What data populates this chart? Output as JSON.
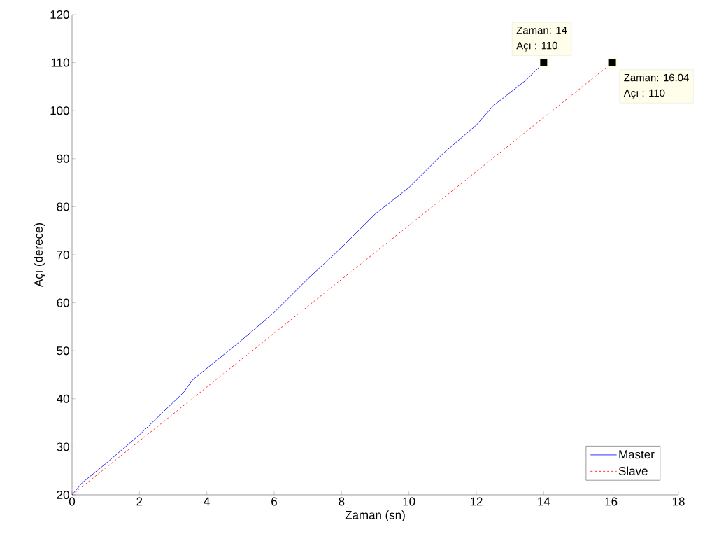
{
  "chart_data": {
    "type": "line",
    "xlabel": "Zaman (sn)",
    "ylabel": "Açı (derece)",
    "xlim": [
      0,
      18
    ],
    "ylim": [
      20,
      120
    ],
    "xticks": [
      0,
      2,
      4,
      6,
      8,
      10,
      12,
      14,
      16,
      18
    ],
    "yticks": [
      20,
      30,
      40,
      50,
      60,
      70,
      80,
      90,
      100,
      110,
      120
    ],
    "grid": false,
    "legend": "bottom right",
    "series": [
      {
        "name": "Master",
        "color": "#0000ff",
        "line_style": "solid",
        "x": [
          0,
          0.3,
          1,
          2,
          3.32,
          3.57,
          5,
          6,
          7,
          8,
          9,
          10,
          11,
          12,
          12.5,
          13.5,
          14
        ],
        "values": [
          20,
          22.5,
          26.5,
          32.5,
          41.4,
          43.9,
          52,
          58,
          65,
          71.5,
          78.5,
          84,
          91,
          97,
          101,
          106.5,
          110
        ]
      },
      {
        "name": "Slave",
        "color": "#ff0000",
        "line_style": "dashed",
        "x": [
          0,
          16.04
        ],
        "values": [
          20,
          110
        ]
      },
      {
        "type": "scatter",
        "color": "#000000",
        "marker": "square",
        "x": [
          14,
          16.04
        ],
        "values": [
          110,
          110
        ]
      }
    ],
    "annotations": [
      "Zaman: 14",
      "Açı : 110",
      "Zaman: 16.04",
      "Açı : 110"
    ]
  }
}
